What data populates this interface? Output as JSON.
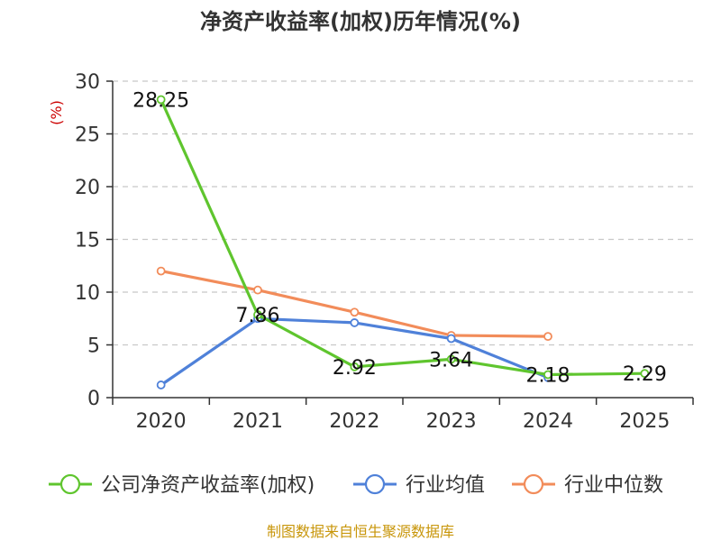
{
  "chart_data": {
    "type": "line",
    "title": "净资产收益率(加权)历年情况(%)",
    "ylabel": "(%)",
    "xlabel": "",
    "categories": [
      "2020",
      "2021",
      "2022",
      "2023",
      "2024",
      "2025"
    ],
    "ylim": [
      0,
      30
    ],
    "yticks": [
      0,
      5,
      10,
      15,
      20,
      25,
      30
    ],
    "grid": true,
    "legend_position": "bottom",
    "series": [
      {
        "name": "公司净资产收益率(加权)",
        "color": "#5fc52e",
        "values": [
          28.25,
          7.86,
          2.92,
          3.64,
          2.18,
          2.29
        ],
        "labels": [
          "28.25",
          "7.86",
          "2.92",
          "3.64",
          "2.18",
          "2.29"
        ]
      },
      {
        "name": "行业均值",
        "color": "#4f81d9",
        "values": [
          1.2,
          7.5,
          7.1,
          5.6,
          1.9,
          null
        ]
      },
      {
        "name": "行业中位数",
        "color": "#f28c5a",
        "values": [
          12.0,
          10.2,
          8.1,
          5.9,
          5.8,
          null
        ]
      }
    ],
    "source": "制图数据来自恒生聚源数据库"
  }
}
